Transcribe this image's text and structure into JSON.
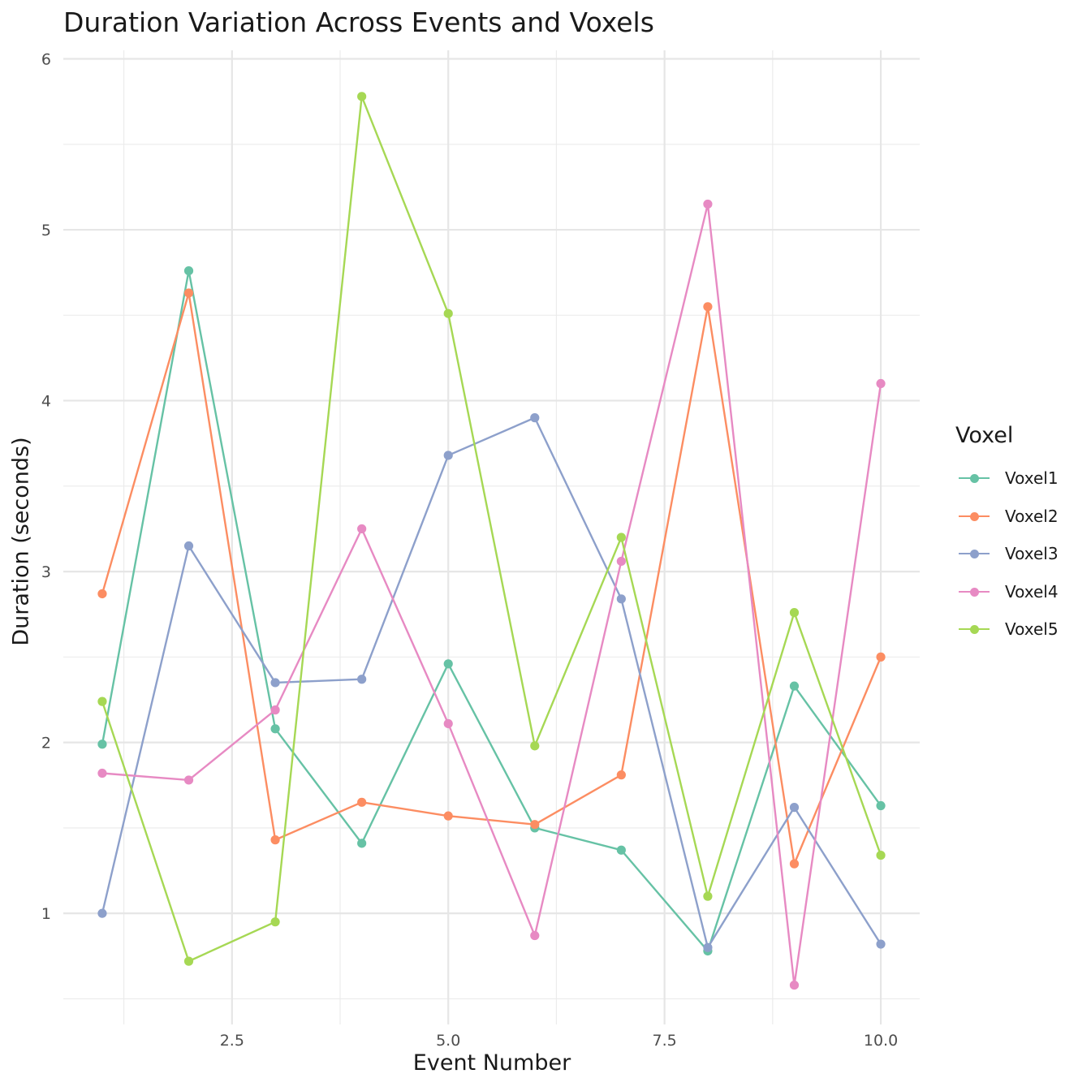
{
  "chart_data": {
    "type": "line",
    "title": "Duration Variation Across Events and Voxels",
    "xlabel": "Event Number",
    "ylabel": "Duration (seconds)",
    "xlim": [
      0.55,
      10.45
    ],
    "ylim": [
      0.35,
      6.05
    ],
    "x_ticks": [
      2.5,
      5.0,
      7.5,
      10.0
    ],
    "x_tick_labels": [
      "2.5",
      "5.0",
      "7.5",
      "10.0"
    ],
    "y_ticks": [
      1,
      2,
      3,
      4,
      5,
      6
    ],
    "y_tick_labels": [
      "1",
      "2",
      "3",
      "4",
      "5",
      "6"
    ],
    "grid": true,
    "legend_title": "Voxel",
    "legend_position": "right",
    "x": [
      1,
      2,
      3,
      4,
      5,
      6,
      7,
      8,
      9,
      10
    ],
    "series": [
      {
        "name": "Voxel1",
        "color": "#66c2a5",
        "values": [
          1.99,
          4.76,
          2.08,
          1.41,
          2.46,
          1.5,
          1.37,
          0.78,
          2.33,
          1.63
        ]
      },
      {
        "name": "Voxel2",
        "color": "#fc8d62",
        "values": [
          2.87,
          4.63,
          1.43,
          1.65,
          1.57,
          1.52,
          1.81,
          4.55,
          1.29,
          2.5
        ]
      },
      {
        "name": "Voxel3",
        "color": "#8da0cb",
        "values": [
          1.0,
          3.15,
          2.35,
          2.37,
          3.68,
          3.9,
          2.84,
          0.8,
          1.62,
          0.82
        ]
      },
      {
        "name": "Voxel4",
        "color": "#e78ac3",
        "values": [
          1.82,
          1.78,
          2.19,
          3.25,
          2.11,
          0.87,
          3.06,
          5.15,
          0.58,
          4.1
        ]
      },
      {
        "name": "Voxel5",
        "color": "#a6d854",
        "values": [
          2.24,
          0.72,
          0.95,
          5.78,
          4.51,
          1.98,
          3.2,
          1.1,
          2.76,
          1.34
        ]
      }
    ]
  }
}
